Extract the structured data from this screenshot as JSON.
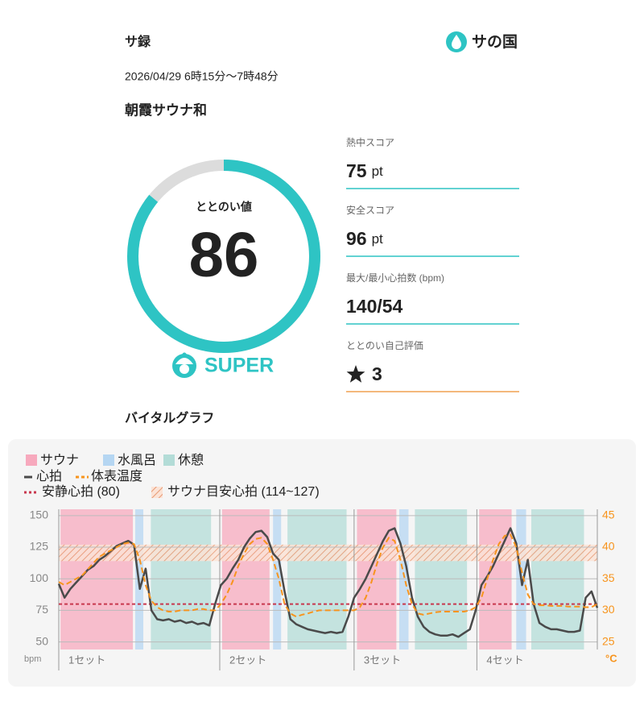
{
  "header": {
    "title": "サ録",
    "brand": "サの国",
    "datetime": "2026/04/29 6時15分〜7時48分",
    "facility": "朝霞サウナ和"
  },
  "score": {
    "label": "ととのい値",
    "value": 86,
    "rank": "SUPER"
  },
  "metrics": [
    {
      "label": "熱中スコア",
      "value": "75",
      "unit": "pt"
    },
    {
      "label": "安全スコア",
      "value": "96",
      "unit": "pt"
    },
    {
      "label": "最大/最小心拍数 (bpm)",
      "value": "140/54"
    },
    {
      "label": "ととのい自己評価",
      "value": "3"
    }
  ],
  "chart_data": {
    "type": "line",
    "title": "バイタルグラフ",
    "ylabel": "bpm",
    "y2label": "°C",
    "xlim": [
      0,
      93
    ],
    "ylim": [
      44,
      155
    ],
    "yticks": [
      50,
      75,
      100,
      125,
      150
    ],
    "y2lim": [
      23.8,
      46
    ],
    "y2ticks": [
      25,
      30,
      35,
      40,
      45
    ],
    "grid": true,
    "phases": [
      {
        "name": "サウナ",
        "color": "#f7a9bd",
        "spans": [
          [
            0.3,
            12.8
          ],
          [
            28.2,
            36.4
          ],
          [
            51.5,
            58.3
          ],
          [
            72.6,
            78.2
          ]
        ]
      },
      {
        "name": "水風呂",
        "color": "#b5d6f2",
        "spans": [
          [
            13.2,
            14.6
          ],
          [
            37.0,
            38.4
          ],
          [
            58.8,
            60.4
          ],
          [
            79.0,
            80.7
          ]
        ]
      },
      {
        "name": "休憩",
        "color": "#b3dcd7",
        "spans": [
          [
            15.9,
            26.3
          ],
          [
            39.5,
            49.7
          ],
          [
            61.5,
            70.5
          ],
          [
            81.6,
            90.7
          ]
        ]
      }
    ],
    "sets": {
      "labels": [
        "1セット",
        "2セット",
        "3セット",
        "4セット"
      ],
      "x": [
        0,
        27.8,
        51.0,
        72.2
      ]
    },
    "x": [
      0,
      1,
      2,
      3,
      4,
      5,
      6,
      7,
      8,
      9,
      10,
      11,
      12,
      13,
      14,
      15,
      16,
      17,
      18,
      19,
      20,
      21,
      22,
      23,
      24,
      25,
      26,
      27,
      28,
      29,
      30,
      31,
      32,
      33,
      34,
      35,
      36,
      37,
      38,
      39,
      40,
      41,
      42,
      43,
      44,
      45,
      46,
      47,
      48,
      49,
      50,
      51,
      52,
      53,
      54,
      55,
      56,
      57,
      58,
      59,
      60,
      61,
      62,
      63,
      64,
      65,
      66,
      67,
      68,
      69,
      70,
      71,
      72,
      73,
      74,
      75,
      76,
      77,
      78,
      79,
      80,
      81,
      82,
      83,
      84,
      85,
      86,
      87,
      88,
      89,
      90,
      91,
      92,
      93
    ],
    "series": [
      {
        "name": "心拍",
        "color": "#4a4a4a",
        "values": [
          96,
          85,
          92,
          97,
          102,
          107,
          110,
          115,
          118,
          122,
          126,
          128,
          130,
          127,
          92,
          108,
          75,
          68,
          67,
          68,
          66,
          67,
          65,
          66,
          64,
          65,
          63,
          80,
          95,
          100,
          108,
          115,
          125,
          132,
          137,
          138,
          133,
          120,
          115,
          90,
          68,
          64,
          62,
          60,
          59,
          58,
          57,
          58,
          57,
          58,
          70,
          85,
          92,
          100,
          110,
          120,
          130,
          138,
          140,
          128,
          110,
          85,
          70,
          62,
          58,
          56,
          55,
          55,
          56,
          54,
          57,
          60,
          75,
          95,
          102,
          110,
          120,
          130,
          140,
          128,
          95,
          115,
          80,
          65,
          62,
          60,
          60,
          59,
          58,
          58,
          59,
          85,
          90,
          77
        ]
      },
      {
        "name": "体表温度",
        "color": "#f7941d",
        "axis": "y2",
        "values": [
          34.5,
          34,
          34.5,
          35,
          35.5,
          36.5,
          37.5,
          38.5,
          39,
          39.5,
          40,
          40.5,
          40.7,
          40.5,
          38,
          34,
          31.5,
          30.5,
          30,
          29.8,
          29.8,
          30,
          30,
          30,
          30.2,
          30.2,
          30,
          30,
          31,
          32.5,
          34.5,
          37,
          39,
          40.5,
          41.3,
          41.5,
          40.5,
          38,
          35,
          31,
          29.5,
          29,
          29.3,
          29.5,
          29.8,
          30,
          30,
          30,
          30,
          30,
          30,
          30,
          30.5,
          32,
          34.5,
          37.5,
          40,
          41.5,
          41,
          38,
          34,
          31,
          29.5,
          29.3,
          29.5,
          29.7,
          29.8,
          29.8,
          29.8,
          29.8,
          29.8,
          30,
          30.5,
          32,
          35,
          38,
          40.5,
          41.8,
          42,
          40,
          36,
          32.5,
          31,
          30.8,
          30.8,
          30.7,
          30.7,
          30.7,
          30.6,
          30.6,
          30.6,
          30.5,
          30.5,
          31
        ]
      }
    ],
    "reference_line": {
      "name": "安静心拍 (80)",
      "value": 80,
      "color": "#c8384e"
    },
    "target_band": {
      "name": "サウナ目安心拍 (114~127)",
      "range": [
        114,
        127
      ],
      "color": "#e89a74"
    }
  }
}
